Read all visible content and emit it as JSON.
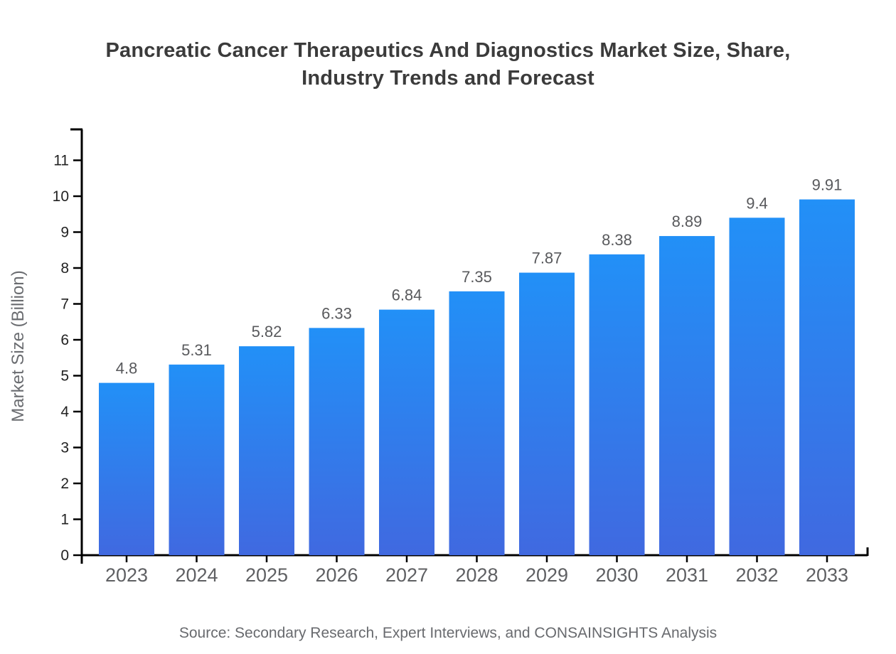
{
  "chart_data": {
    "type": "bar",
    "title": "Pancreatic Cancer Therapeutics And Diagnostics Market Size, Share, Industry Trends and Forecast",
    "title_line1": "Pancreatic Cancer Therapeutics And Diagnostics Market Size, Share,",
    "title_line2": "Industry Trends and Forecast",
    "categories": [
      "2023",
      "2024",
      "2025",
      "2026",
      "2027",
      "2028",
      "2029",
      "2030",
      "2031",
      "2032",
      "2033"
    ],
    "values": [
      4.8,
      5.31,
      5.82,
      6.33,
      6.84,
      7.35,
      7.87,
      8.38,
      8.89,
      9.4,
      9.91
    ],
    "xlabel": "",
    "ylabel": "Market Size (Billion)",
    "ylim": [
      0,
      11.9
    ],
    "y_ticks": [
      0,
      1,
      2,
      3,
      4,
      5,
      6,
      7,
      8,
      9,
      10,
      11
    ],
    "grid": false,
    "legend": null,
    "bar_gradient_top": "#2290f7",
    "bar_gradient_bottom": "#4069e0",
    "source": "Source: Secondary Research, Expert Interviews, and CONSAINSIGHTS Analysis"
  }
}
